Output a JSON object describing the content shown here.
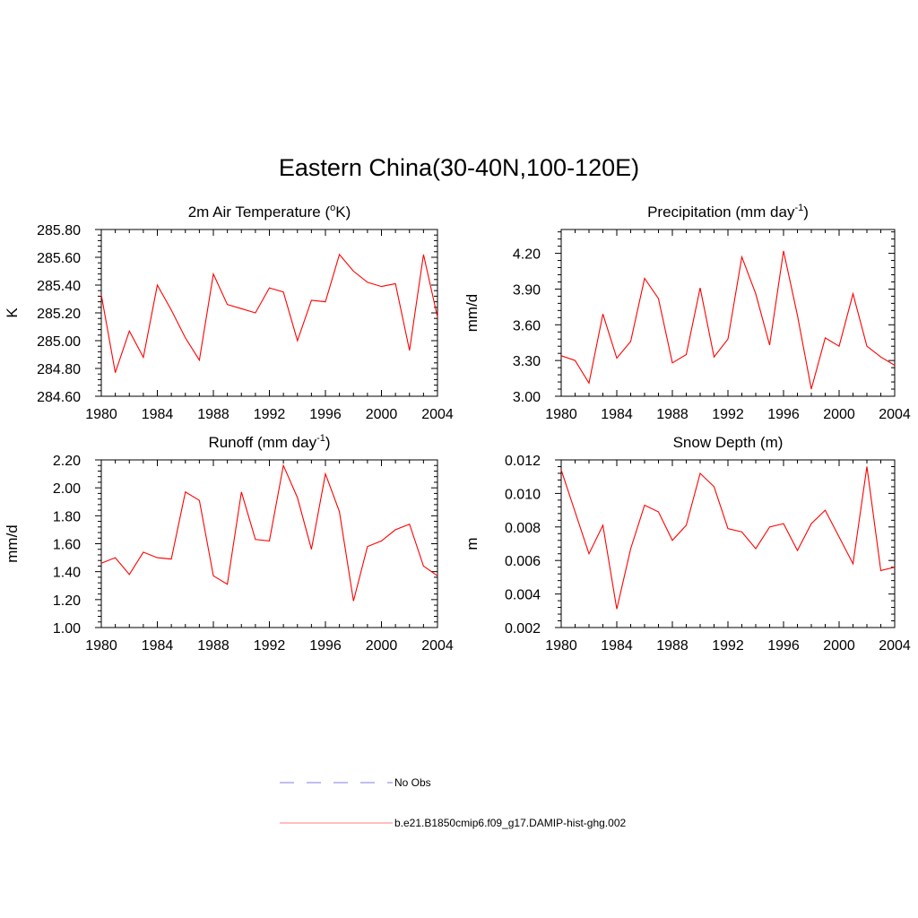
{
  "figure": {
    "title": "Eastern China(30-40N,100-120E)"
  },
  "legend": [
    {
      "label": "No Obs",
      "color": "#9999ee",
      "style": "dashed"
    },
    {
      "label": "b.e21.B1850cmip6.f09_g17.DAMIP-hist-ghg.002",
      "color": "#ff0000",
      "style": "solid"
    }
  ],
  "chart_data": [
    {
      "type": "line",
      "title": "2m Air Temperature (",
      "title_sup": "o",
      "title_post": "K)",
      "ylabel": "K",
      "xlim": [
        1980,
        2004
      ],
      "xticks": [
        "1980",
        "1984",
        "1988",
        "1992",
        "1996",
        "2000",
        "2004"
      ],
      "ylim": [
        284.6,
        285.8
      ],
      "yticks": [
        "284.60",
        "284.80",
        "285.00",
        "285.20",
        "285.40",
        "285.60",
        "285.80"
      ],
      "series": [
        {
          "color": "#ff0000",
          "x": [
            1980,
            1981,
            1982,
            1983,
            1984,
            1985,
            1986,
            1987,
            1988,
            1989,
            1990,
            1991,
            1992,
            1993,
            1994,
            1995,
            1996,
            1997,
            1998,
            1999,
            2000,
            2001,
            2002,
            2003,
            2004
          ],
          "values": [
            285.33,
            284.77,
            285.07,
            284.88,
            285.4,
            285.22,
            285.02,
            284.86,
            285.48,
            285.26,
            285.23,
            285.2,
            285.38,
            285.35,
            285.0,
            285.29,
            285.28,
            285.62,
            285.5,
            285.42,
            285.39,
            285.41,
            284.93,
            285.62,
            285.17
          ]
        }
      ]
    },
    {
      "type": "line",
      "title": "Precipitation (mm day",
      "title_sup": "-1",
      "title_post": ")",
      "ylabel": "mm/d",
      "xlim": [
        1980,
        2004
      ],
      "xticks": [
        "1980",
        "1984",
        "1988",
        "1992",
        "1996",
        "2000",
        "2004"
      ],
      "ylim": [
        3.0,
        4.4
      ],
      "yticks": [
        "3.00",
        "3.30",
        "3.60",
        "3.90",
        "4.20"
      ],
      "ytick_values": [
        3.0,
        3.3,
        3.6,
        3.9,
        4.2
      ],
      "series": [
        {
          "color": "#ff0000",
          "x": [
            1980,
            1981,
            1982,
            1983,
            1984,
            1985,
            1986,
            1987,
            1988,
            1989,
            1990,
            1991,
            1992,
            1993,
            1994,
            1995,
            1996,
            1997,
            1998,
            1999,
            2000,
            2001,
            2002,
            2003,
            2004
          ],
          "values": [
            3.34,
            3.3,
            3.11,
            3.69,
            3.32,
            3.46,
            3.99,
            3.82,
            3.28,
            3.35,
            3.91,
            3.33,
            3.48,
            4.17,
            3.86,
            3.43,
            4.22,
            3.68,
            3.06,
            3.49,
            3.42,
            3.86,
            3.42,
            3.33,
            3.26
          ]
        }
      ]
    },
    {
      "type": "line",
      "title": "Runoff (mm day",
      "title_sup": "-1",
      "title_post": ")",
      "ylabel": "mm/d",
      "xlim": [
        1980,
        2004
      ],
      "xticks": [
        "1980",
        "1984",
        "1988",
        "1992",
        "1996",
        "2000",
        "2004"
      ],
      "ylim": [
        1.0,
        2.2
      ],
      "yticks": [
        "1.00",
        "1.20",
        "1.40",
        "1.60",
        "1.80",
        "2.00",
        "2.20"
      ],
      "series": [
        {
          "color": "#ff0000",
          "x": [
            1980,
            1981,
            1982,
            1983,
            1984,
            1985,
            1986,
            1987,
            1988,
            1989,
            1990,
            1991,
            1992,
            1993,
            1994,
            1995,
            1996,
            1997,
            1998,
            1999,
            2000,
            2001,
            2002,
            2003,
            2004
          ],
          "values": [
            1.46,
            1.5,
            1.38,
            1.54,
            1.5,
            1.49,
            1.97,
            1.91,
            1.37,
            1.31,
            1.97,
            1.63,
            1.62,
            2.16,
            1.93,
            1.56,
            2.1,
            1.83,
            1.19,
            1.58,
            1.62,
            1.7,
            1.74,
            1.44,
            1.37
          ]
        }
      ]
    },
    {
      "type": "line",
      "title": "Snow Depth (m)",
      "title_sup": "",
      "title_post": "",
      "ylabel": "m",
      "xlim": [
        1980,
        2004
      ],
      "xticks": [
        "1980",
        "1984",
        "1988",
        "1992",
        "1996",
        "2000",
        "2004"
      ],
      "ylim": [
        0.002,
        0.012
      ],
      "yticks": [
        "0.002",
        "0.004",
        "0.006",
        "0.008",
        "0.010",
        "0.012"
      ],
      "series": [
        {
          "color": "#ff0000",
          "x": [
            1980,
            1981,
            1982,
            1983,
            1984,
            1985,
            1986,
            1987,
            1988,
            1989,
            1990,
            1991,
            1992,
            1993,
            1994,
            1995,
            1996,
            1997,
            1998,
            1999,
            2000,
            2001,
            2002,
            2003,
            2004
          ],
          "values": [
            0.0114,
            0.0089,
            0.0064,
            0.0081,
            0.0031,
            0.0067,
            0.0093,
            0.0089,
            0.0072,
            0.0081,
            0.0112,
            0.0104,
            0.0079,
            0.0077,
            0.0067,
            0.008,
            0.0082,
            0.0066,
            0.0082,
            0.009,
            0.0074,
            0.0058,
            0.0116,
            0.0054,
            0.0056
          ]
        }
      ]
    }
  ]
}
